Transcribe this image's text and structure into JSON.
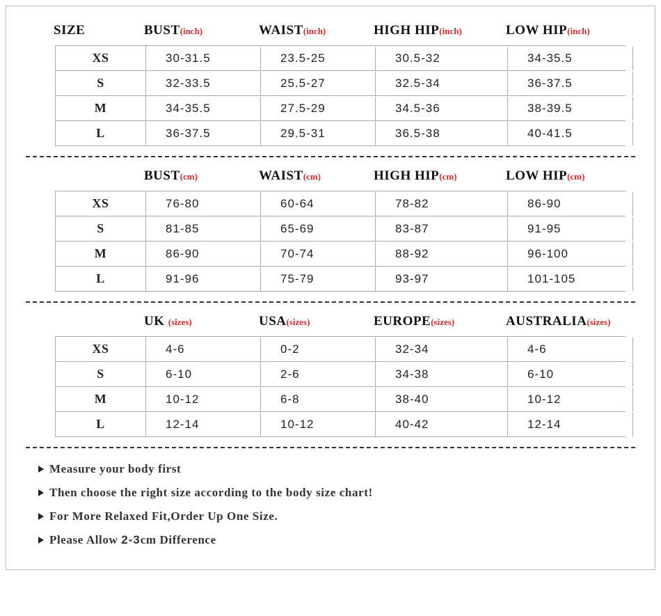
{
  "colors": {
    "text": "#111",
    "unit": "#d22b2b",
    "border": "#aaa",
    "dash": "#333"
  },
  "section1": {
    "header": {
      "c0": "SIZE",
      "c1": "BUST",
      "c2": "WAIST",
      "c3": "HIGH HIP",
      "c4": "LOW HIP",
      "unit": "(inch)"
    },
    "rows": [
      {
        "size": "XS",
        "c1": "30-31.5",
        "c2": "23.5-25",
        "c3": "30.5-32",
        "c4": "34-35.5"
      },
      {
        "size": "S",
        "c1": "32-33.5",
        "c2": "25.5-27",
        "c3": "32.5-34",
        "c4": "36-37.5"
      },
      {
        "size": "M",
        "c1": "34-35.5",
        "c2": "27.5-29",
        "c3": "34.5-36",
        "c4": "38-39.5"
      },
      {
        "size": "L",
        "c1": "36-37.5",
        "c2": "29.5-31",
        "c3": "36.5-38",
        "c4": "40-41.5"
      }
    ]
  },
  "section2": {
    "header": {
      "c0": "",
      "c1": "BUST",
      "c2": "WAIST",
      "c3": "HIGH HIP",
      "c4": "LOW HIP",
      "unit": "(cm)"
    },
    "rows": [
      {
        "size": "XS",
        "c1": "76-80",
        "c2": "60-64",
        "c3": "78-82",
        "c4": "86-90"
      },
      {
        "size": "S",
        "c1": "81-85",
        "c2": "65-69",
        "c3": "83-87",
        "c4": "91-95"
      },
      {
        "size": "M",
        "c1": "86-90",
        "c2": "70-74",
        "c3": "88-92",
        "c4": "96-100"
      },
      {
        "size": "L",
        "c1": "91-96",
        "c2": "75-79",
        "c3": "93-97",
        "c4": "101-105"
      }
    ]
  },
  "section3": {
    "header": {
      "c0": "",
      "c1": "UK ",
      "c2": "USA",
      "c3": "EUROPE",
      "c4": "AUSTRALIA",
      "unit": "(sizes)"
    },
    "rows": [
      {
        "size": "XS",
        "c1": "4-6",
        "c2": "0-2",
        "c3": "32-34",
        "c4": "4-6"
      },
      {
        "size": "S",
        "c1": "6-10",
        "c2": "2-6",
        "c3": "34-38",
        "c4": "6-10"
      },
      {
        "size": "M",
        "c1": "10-12",
        "c2": "6-8",
        "c3": "38-40",
        "c4": "10-12"
      },
      {
        "size": "L",
        "c1": "12-14",
        "c2": "10-12",
        "c3": "40-42",
        "c4": "12-14"
      }
    ]
  },
  "notes": {
    "n1": "Measure your body first",
    "n2": "Then choose the right size according to the body size chart!",
    "n3": "For More Relaxed Fit,Order Up One Size.",
    "n4a": "Please Allow ",
    "n4b": "2-3",
    "n4c": "cm Difference"
  }
}
